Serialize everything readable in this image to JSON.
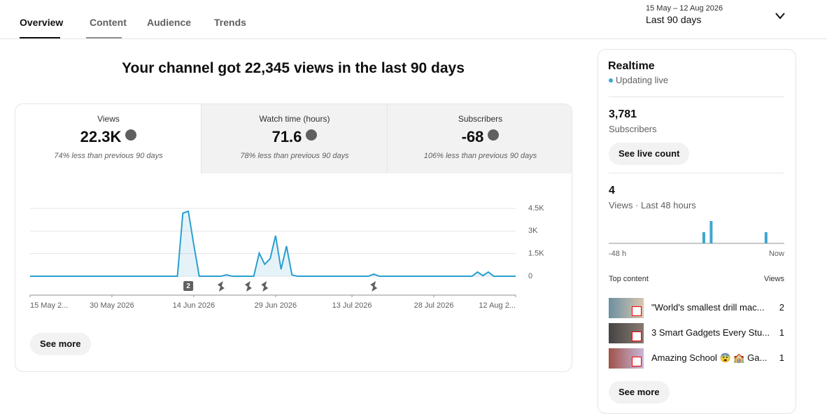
{
  "tabs": [
    "Overview",
    "Content",
    "Audience",
    "Trends"
  ],
  "date_range": {
    "range": "15 May – 12 Aug 2026",
    "label": "Last 90 days"
  },
  "headline": "Your channel got 22,345 views in the last 90 days",
  "metrics": [
    {
      "label": "Views",
      "value": "22.3K",
      "note": "74% less than previous 90 days"
    },
    {
      "label": "Watch time (hours)",
      "value": "71.6",
      "note": "78% less than previous 90 days"
    },
    {
      "label": "Subscribers",
      "value": "-68",
      "note": "106% less than previous 90 days"
    }
  ],
  "see_more": "See more",
  "chart_data": [
    {
      "type": "line",
      "color": "#2a9fd0",
      "grid": true,
      "x": [
        "2026-05-15",
        "2026-06-11",
        "2026-06-12",
        "2026-06-13",
        "2026-06-14",
        "2026-06-15",
        "2026-06-19",
        "2026-06-20",
        "2026-06-21",
        "2026-06-25",
        "2026-06-26",
        "2026-06-27",
        "2026-06-28",
        "2026-06-29",
        "2026-06-30",
        "2026-07-01",
        "2026-07-02",
        "2026-07-03",
        "2026-07-16",
        "2026-07-17",
        "2026-07-18",
        "2026-08-04",
        "2026-08-05",
        "2026-08-06",
        "2026-08-07",
        "2026-08-08",
        "2026-08-12"
      ],
      "values": [
        0,
        0,
        4180,
        4315,
        2100,
        0,
        0,
        90,
        0,
        0,
        1530,
        790,
        1160,
        2690,
        460,
        2000,
        90,
        0,
        0,
        140,
        0,
        0,
        280,
        40,
        280,
        0,
        0
      ],
      "xlim": [
        "2026-05-15",
        "2026-08-12"
      ],
      "xticks": [
        {
          "value": "2026-05-15",
          "label": "15 May 2..."
        },
        {
          "value": "2026-05-30",
          "label": "30 May 2026"
        },
        {
          "value": "2026-06-14",
          "label": "14 Jun 2026"
        },
        {
          "value": "2026-06-29",
          "label": "29 Jun 2026"
        },
        {
          "value": "2026-07-13",
          "label": "13 Jul 2026"
        },
        {
          "value": "2026-07-28",
          "label": "28 Jul 2026"
        },
        {
          "value": "2026-08-12",
          "label": "12 Aug 2..."
        }
      ],
      "ylim": [
        0,
        4500
      ],
      "yticks": [
        0,
        {
          "value": 1500,
          "label": "1.5K"
        },
        {
          "value": 3000,
          "label": "3K"
        },
        {
          "value": 4500,
          "label": "4.5K"
        }
      ],
      "markers": [
        {
          "x": "2026-06-13",
          "label": "2"
        },
        {
          "x": "2026-06-19"
        },
        {
          "x": "2026-06-24"
        },
        {
          "x": "2026-06-27"
        },
        {
          "x": "2026-07-17"
        }
      ]
    },
    {
      "type": "bar",
      "color": "#3ea6d2",
      "x": [
        -22,
        -20,
        -5
      ],
      "values": [
        1,
        2,
        1
      ],
      "xlim": [
        -48,
        0
      ],
      "ylim": [
        0,
        2
      ],
      "xticks": [
        {
          "value": -48,
          "label": "-48 h"
        },
        {
          "value": 0,
          "label": "Now"
        }
      ]
    }
  ],
  "realtime": {
    "title": "Realtime",
    "status": "Updating live",
    "subscribers": "3,781",
    "subscribers_label": "Subscribers",
    "button": "See live count",
    "views": "4",
    "views_label": "Views · Last 48 hours",
    "top_content": "Top content",
    "views_header": "Views",
    "items": [
      {
        "title": "\"World's smallest drill mac...",
        "views": 2
      },
      {
        "title": "3 Smart Gadgets Every Stu...",
        "views": 1
      },
      {
        "title": "Amazing School 😨 🏫 Ga...",
        "views": 1
      }
    ],
    "see_more": "See more"
  }
}
